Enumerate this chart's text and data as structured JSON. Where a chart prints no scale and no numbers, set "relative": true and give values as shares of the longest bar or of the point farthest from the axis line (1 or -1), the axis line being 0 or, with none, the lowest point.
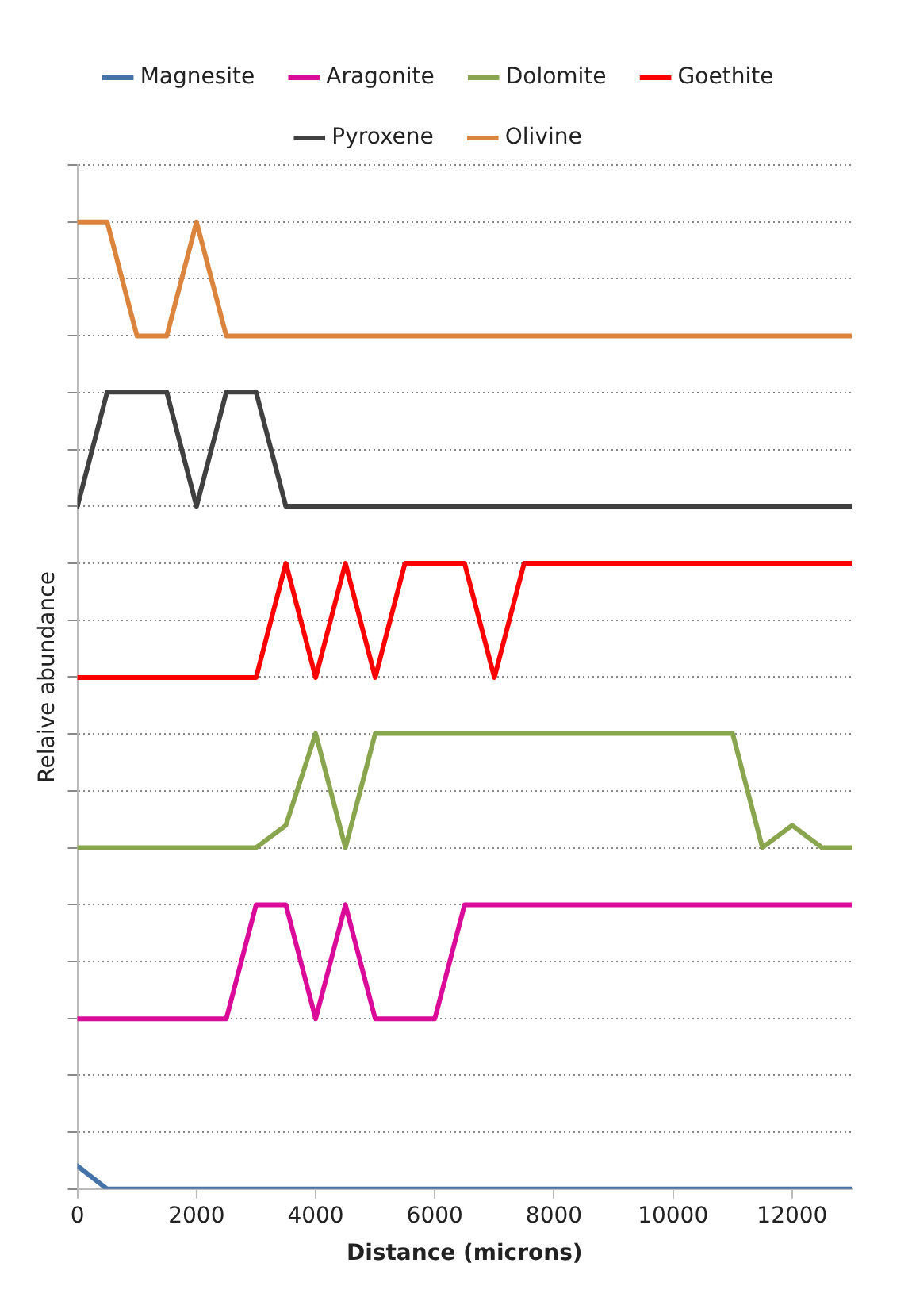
{
  "chart_data": {
    "type": "line",
    "xlabel": "Distance (microns)",
    "ylabel": "Relaive abundance",
    "relative": true,
    "xlim": [
      0,
      13000
    ],
    "xticks": [
      0,
      2000,
      4000,
      6000,
      8000,
      10000,
      12000
    ],
    "grid": "y",
    "legend": "top",
    "tick_labels": "x",
    "marker": "none",
    "line_style": "solid",
    "series": [
      {
        "name": "Magnesite",
        "color": "#4572a7",
        "x": [
          0,
          500,
          13000
        ],
        "values": [
          0.024,
          0,
          0
        ]
      },
      {
        "name": "Aragonite",
        "color": "#db0b9a",
        "x": [
          0,
          2500,
          3000,
          3500,
          4000,
          4500,
          5000,
          6000,
          6500,
          13000
        ],
        "values": [
          0.176,
          0.176,
          0.294,
          0.294,
          0.176,
          0.294,
          0.176,
          0.176,
          0.294,
          0.294
        ]
      },
      {
        "name": "Dolomite",
        "color": "#89a54e",
        "x": [
          0,
          3000,
          3500,
          4000,
          4500,
          5000,
          11000,
          11500,
          12000,
          12500,
          13000
        ],
        "values": [
          0.353,
          0.353,
          0.376,
          0.471,
          0.353,
          0.471,
          0.471,
          0.353,
          0.376,
          0.353,
          0.353
        ]
      },
      {
        "name": "Goethite",
        "color": "#ff0000",
        "x": [
          0,
          3000,
          3500,
          4000,
          4500,
          5000,
          5500,
          6500,
          7000,
          7500,
          13000
        ],
        "values": [
          0.529,
          0.529,
          0.647,
          0.529,
          0.647,
          0.529,
          0.647,
          0.647,
          0.529,
          0.647,
          0.647
        ]
      },
      {
        "name": "Pyroxene",
        "color": "#404040",
        "x": [
          0,
          500,
          1500,
          2000,
          2500,
          3000,
          3500,
          13000
        ],
        "values": [
          0.706,
          0.824,
          0.824,
          0.706,
          0.824,
          0.824,
          0.706,
          0.706
        ]
      },
      {
        "name": "Olivine",
        "color": "#db843d",
        "x": [
          0,
          500,
          1000,
          1500,
          2000,
          2500,
          13000
        ],
        "values": [
          1,
          1,
          0.882,
          0.882,
          1,
          0.882,
          0.882
        ]
      }
    ]
  }
}
